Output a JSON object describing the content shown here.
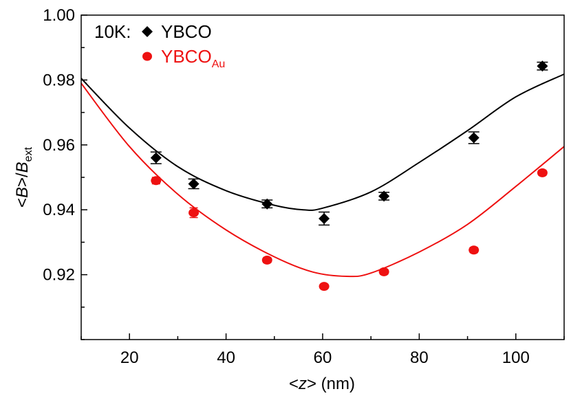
{
  "chart_data": {
    "type": "scatter",
    "x_label": {
      "prefix": "<",
      "var": "z",
      "suffix": "> (nm)"
    },
    "y_label": {
      "prefix": "<",
      "var": "B",
      "mid": ">/",
      "var2": "B",
      "sub": "ext"
    },
    "xlim": [
      10,
      110
    ],
    "ylim": [
      0.9,
      1.0
    ],
    "x_ticks": [
      20,
      40,
      60,
      80,
      100
    ],
    "y_ticks": [
      0.92,
      0.94,
      0.96,
      0.98,
      1.0
    ],
    "x_tick_labels": [
      "20",
      "40",
      "60",
      "80",
      "100"
    ],
    "y_tick_labels": [
      "0.92",
      "0.94",
      "0.96",
      "0.98",
      "1.00"
    ],
    "grid": false,
    "legend": {
      "position": "top-left",
      "prefix": "10K:",
      "entries": [
        {
          "text": "YBCO",
          "sub": "",
          "color": "#000000",
          "marker": "diamond"
        },
        {
          "text": "YBCO",
          "sub": "Au",
          "color": "#ee1111",
          "marker": "circle"
        }
      ]
    },
    "series": [
      {
        "name": "YBCO",
        "color": "#000000",
        "marker": "diamond",
        "x": [
          25.5,
          33.3,
          48.5,
          60.3,
          72.7,
          91.3,
          105.5
        ],
        "y": [
          0.956,
          0.948,
          0.9418,
          0.9373,
          0.9442,
          0.9622,
          0.9843
        ],
        "yerr": [
          0.0018,
          0.0015,
          0.0012,
          0.002,
          0.0012,
          0.0018,
          0.0012
        ],
        "fit": {
          "x": [
            10,
            20,
            30,
            40,
            50,
            56,
            60,
            70,
            80,
            90,
            100,
            110
          ],
          "y": [
            0.9805,
            0.9652,
            0.9533,
            0.9459,
            0.9414,
            0.94,
            0.9405,
            0.9455,
            0.9546,
            0.9644,
            0.9748,
            0.9818
          ]
        }
      },
      {
        "name": "YBCO Au",
        "color": "#ee1111",
        "marker": "circle",
        "x": [
          25.5,
          33.3,
          48.5,
          60.3,
          72.7,
          91.3,
          105.5
        ],
        "y": [
          0.949,
          0.9391,
          0.9245,
          0.9164,
          0.9209,
          0.9276,
          0.9514
        ],
        "yerr": [
          0.001,
          0.0015,
          0.0008,
          0.0007,
          0.0008,
          0.0008,
          0.0008
        ],
        "fit": {
          "x": [
            10,
            20,
            30,
            40,
            50,
            58,
            65,
            70,
            80,
            90,
            100,
            110
          ],
          "y": [
            0.979,
            0.9595,
            0.9448,
            0.9338,
            0.9255,
            0.9208,
            0.9195,
            0.9205,
            0.927,
            0.9355,
            0.9472,
            0.9595
          ]
        }
      }
    ]
  }
}
